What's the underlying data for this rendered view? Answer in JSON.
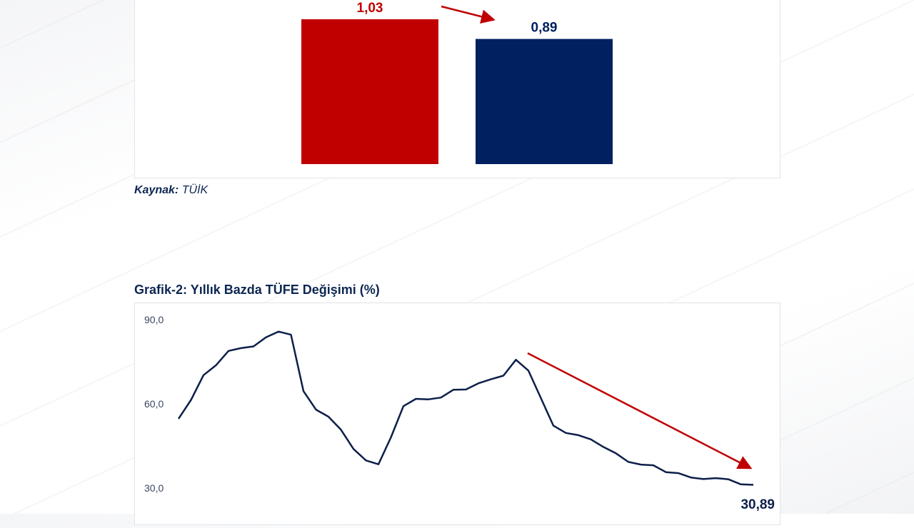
{
  "chart_data": [
    {
      "type": "bar",
      "categories": [
        "",
        ""
      ],
      "values": [
        1.03,
        0.89
      ],
      "data_labels": [
        "1,03",
        "0,89"
      ],
      "colors": [
        "#c00000",
        "#002060"
      ],
      "ylim": [
        0,
        1.03
      ],
      "grid": false,
      "annotation": "red arrow pointing from first bar to second bar"
    },
    {
      "type": "line",
      "title": "Grafik-2: Yıllık Bazda TÜFE Değişimi (%)",
      "ylim": [
        30,
        90
      ],
      "yticks": [
        "90,0",
        "60,0",
        "30,0"
      ],
      "ytick_values": [
        90,
        60,
        30
      ],
      "grid": false,
      "line_color": "#0d1f4a",
      "values": [
        54.44,
        61.14,
        69.97,
        73.5,
        78.62,
        79.6,
        80.21,
        83.45,
        85.51,
        84.39,
        64.27,
        57.68,
        55.18,
        50.51,
        43.68,
        39.59,
        38.21,
        47.83,
        58.94,
        61.53,
        61.36,
        61.98,
        64.77,
        64.86,
        67.07,
        68.5,
        69.8,
        75.45,
        71.6,
        61.78,
        51.97,
        49.38,
        48.58,
        47.09,
        44.38,
        42.12,
        39.05,
        38.1,
        37.86,
        35.41,
        35.05,
        33.52,
        32.95,
        33.29,
        32.87,
        31.07,
        30.89
      ],
      "end_label": "30,89",
      "annotation": "red downward trend arrow",
      "arrow_color": "#c00000"
    }
  ],
  "source": {
    "label": "Kaynak:",
    "value": "TÜİK"
  }
}
